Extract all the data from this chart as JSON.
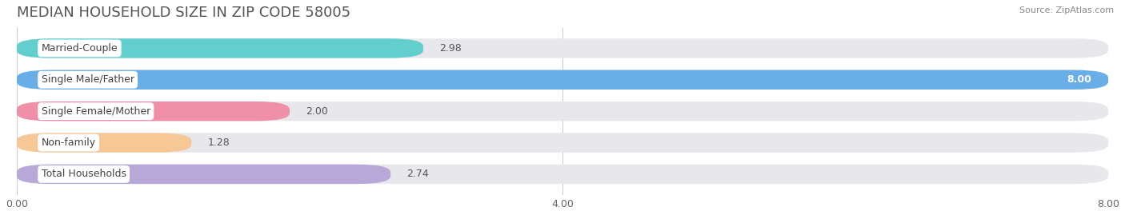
{
  "title": "MEDIAN HOUSEHOLD SIZE IN ZIP CODE 58005",
  "source": "Source: ZipAtlas.com",
  "categories": [
    "Married-Couple",
    "Single Male/Father",
    "Single Female/Mother",
    "Non-family",
    "Total Households"
  ],
  "values": [
    2.98,
    8.0,
    2.0,
    1.28,
    2.74
  ],
  "bar_colors": [
    "#62cece",
    "#6aaee8",
    "#f090a8",
    "#f5c896",
    "#b8a8d8"
  ],
  "xlim": [
    0,
    8.0
  ],
  "xticks": [
    0.0,
    4.0,
    8.0
  ],
  "xtick_labels": [
    "0.00",
    "4.00",
    "8.00"
  ],
  "background_color": "#ffffff",
  "bar_bg_color": "#e8e8ec",
  "title_fontsize": 13,
  "bar_height": 0.62,
  "value_label_inside": [
    false,
    true,
    false,
    false,
    false
  ]
}
